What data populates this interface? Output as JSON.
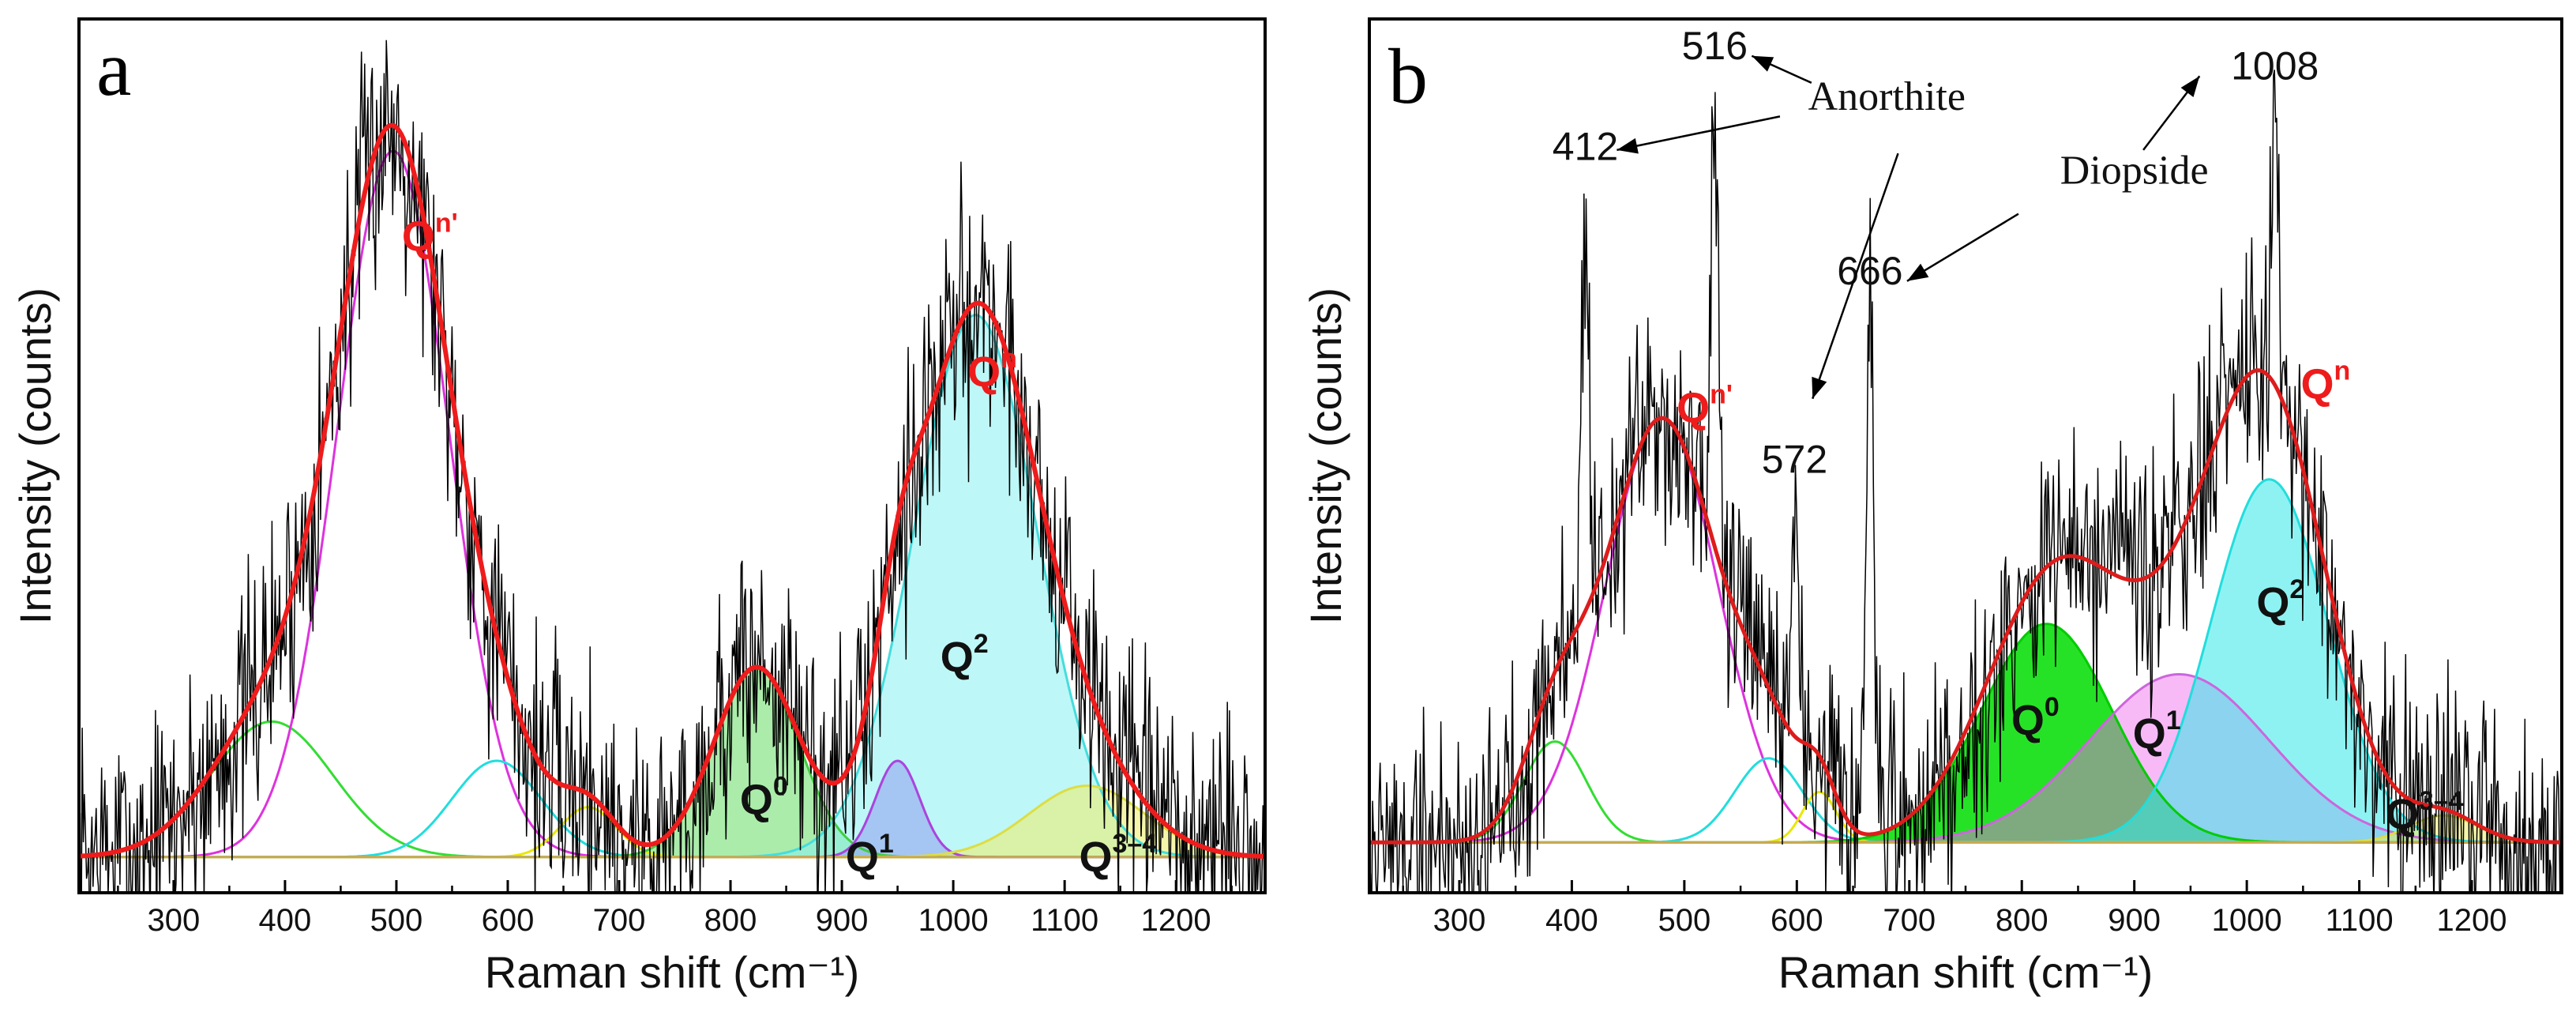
{
  "chart_data": [
    {
      "type": "line",
      "panel_label": "a",
      "xlabel": "Raman shift (cm⁻¹)",
      "ylabel": "Intensity (counts)",
      "xlim": [
        215,
        1280
      ],
      "ylim": [
        -10,
        235
      ],
      "xticks": [
        300,
        400,
        500,
        600,
        700,
        800,
        900,
        1000,
        1100,
        1200
      ],
      "yticks": [],
      "noise_level": 26,
      "peaks": [
        {
          "name": "Qn' band-1",
          "center": 388,
          "amp": 38,
          "sigma": 55,
          "line": "#33dd33",
          "fill": "none",
          "fillOpacity": 0
        },
        {
          "name": "Qn'",
          "center": 497,
          "amp": 198,
          "sigma": 50,
          "line": "#dd33dd",
          "fill": "none",
          "fillOpacity": 0
        },
        {
          "name": "Qn' band-3",
          "center": 590,
          "amp": 27,
          "sigma": 40,
          "line": "#22dddd",
          "fill": "none",
          "fillOpacity": 0
        },
        {
          "name": "Qn' band-4",
          "center": 672,
          "amp": 14,
          "sigma": 25,
          "line": "#e8e800",
          "fill": "none",
          "fillOpacity": 0
        },
        {
          "name": "Q0",
          "center": 823,
          "amp": 53,
          "sigma": 38,
          "line": "#44cc44",
          "fill": "#66dd66",
          "fillOpacity": 0.55
        },
        {
          "name": "Q1",
          "center": 950,
          "amp": 27,
          "sigma": 20,
          "line": "#aa44dd",
          "fill": "#aa55ee",
          "fillOpacity": 0.65
        },
        {
          "name": "Q2",
          "center": 1020,
          "amp": 152,
          "sigma": 55,
          "line": "#44dddd",
          "fill": "#88f0f0",
          "fillOpacity": 0.55
        },
        {
          "name": "Q3-4",
          "center": 1120,
          "amp": 20,
          "sigma": 52,
          "line": "#dddd44",
          "fill": "#eeee66",
          "fillOpacity": 0.55
        }
      ],
      "labels": [
        {
          "text": "Q",
          "sup": "n'",
          "x": 530,
          "y": 170,
          "color": "red"
        },
        {
          "text": "Q",
          "sup": "n",
          "x": 1035,
          "y": 132,
          "color": "red"
        },
        {
          "text": "Q",
          "sup": "0",
          "x": 830,
          "y": 12,
          "color": "black"
        },
        {
          "text": "Q",
          "sup": "1",
          "x": 925,
          "y": -4,
          "color": "black"
        },
        {
          "text": "Q",
          "sup": "2",
          "x": 1010,
          "y": 52,
          "color": "black"
        },
        {
          "text": "Q",
          "sup": "3–4",
          "x": 1148,
          "y": -4,
          "color": "black"
        }
      ],
      "annotations": []
    },
    {
      "type": "line",
      "panel_label": "b",
      "xlabel": "Raman shift (cm⁻¹)",
      "ylabel": "Intensity (counts)",
      "xlim": [
        220,
        1280
      ],
      "ylim": [
        -15,
        245
      ],
      "xticks": [
        300,
        400,
        500,
        600,
        700,
        800,
        900,
        1000,
        1100,
        1200
      ],
      "yticks": [],
      "noise_level": 26,
      "peaks": [
        {
          "name": "Qn' band-1",
          "center": 385,
          "amp": 30,
          "sigma": 28,
          "line": "#33dd33",
          "fill": "none",
          "fillOpacity": 0
        },
        {
          "name": "Qn'",
          "center": 480,
          "amp": 126,
          "sigma": 50,
          "line": "#dd33dd",
          "fill": "none",
          "fillOpacity": 0
        },
        {
          "name": "Qn' band-3",
          "center": 575,
          "amp": 25,
          "sigma": 30,
          "line": "#22dddd",
          "fill": "none",
          "fillOpacity": 0
        },
        {
          "name": "Qn' band-4",
          "center": 620,
          "amp": 15,
          "sigma": 15,
          "line": "#e8e800",
          "fill": "none",
          "fillOpacity": 0
        },
        {
          "name": "Q0",
          "center": 822,
          "amp": 65,
          "sigma": 58,
          "line": "#00cc00",
          "fill": "#00dd00",
          "fillOpacity": 0.85
        },
        {
          "name": "Q1",
          "center": 940,
          "amp": 50,
          "sigma": 80,
          "line": "#cc66dd",
          "fill": "#ee66ee",
          "fillOpacity": 0.45
        },
        {
          "name": "Q2",
          "center": 1020,
          "amp": 108,
          "sigma": 52,
          "line": "#22dddd",
          "fill": "#33e8e8",
          "fillOpacity": 0.55
        },
        {
          "name": "Q3-4",
          "center": 1175,
          "amp": 8,
          "sigma": 30,
          "line": "#dddd44",
          "fill": "#eeee66",
          "fillOpacity": 0.55
        }
      ],
      "labels": [
        {
          "text": "Q",
          "sup": "n'",
          "x": 518,
          "y": 125,
          "color": "red"
        },
        {
          "text": "Q",
          "sup": "n",
          "x": 1070,
          "y": 132,
          "color": "red"
        },
        {
          "text": "Q",
          "sup": "0",
          "x": 812,
          "y": 32,
          "color": "black"
        },
        {
          "text": "Q",
          "sup": "1",
          "x": 920,
          "y": 28,
          "color": "black"
        },
        {
          "text": "Q",
          "sup": "2",
          "x": 1030,
          "y": 67,
          "color": "black"
        },
        {
          "text": "Q",
          "sup": "3–4",
          "x": 1158,
          "y": 4,
          "color": "black"
        }
      ],
      "annotations": [
        {
          "kind": "peak",
          "text": "516",
          "x": 527,
          "y": 233
        },
        {
          "kind": "peak",
          "text": "412",
          "x": 412,
          "y": 203
        },
        {
          "kind": "peak",
          "text": "572",
          "x": 598,
          "y": 110
        },
        {
          "kind": "peak",
          "text": "666",
          "x": 665,
          "y": 166
        },
        {
          "kind": "peak",
          "text": "1008",
          "x": 1025,
          "y": 227
        },
        {
          "kind": "mineral",
          "text": "Anorthite",
          "x": 680,
          "y": 218,
          "arrows": [
            {
              "to": [
                560,
                234
              ],
              "from": [
                613,
                226
              ]
            },
            {
              "to": [
                440,
                206
              ],
              "from": [
                585,
                216
              ]
            },
            {
              "to": [
                614,
                132
              ],
              "from": [
                690,
                205
              ]
            }
          ]
        },
        {
          "kind": "mineral",
          "text": "Diopside",
          "x": 900,
          "y": 196,
          "arrows": [
            {
              "to": [
                698,
                167
              ],
              "from": [
                797,
                187
              ]
            },
            {
              "to": [
                958,
                228
              ],
              "from": [
                908,
                206
              ]
            }
          ]
        }
      ]
    }
  ]
}
